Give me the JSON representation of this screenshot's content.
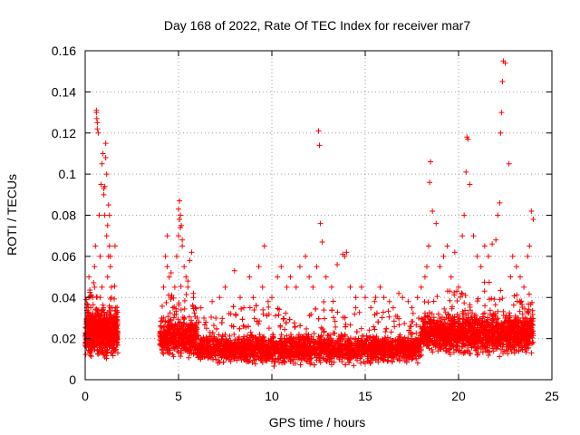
{
  "chart_data": {
    "type": "scatter",
    "title": "Day 168 of 2022, Rate Of TEC Index for receiver mar7",
    "xlabel": "GPS time / hours",
    "ylabel": "ROTI / TECUs",
    "xlim": [
      0,
      25
    ],
    "ylim": [
      0,
      0.16
    ],
    "xticks": [
      0,
      5,
      10,
      15,
      20,
      25
    ],
    "xtick_labels": [
      "0",
      "5",
      "10",
      "15",
      "20",
      "25"
    ],
    "yticks": [
      0,
      0.02,
      0.04,
      0.06,
      0.08,
      0.1,
      0.12,
      0.14,
      0.16
    ],
    "ytick_labels": [
      "0",
      "0.02",
      "0.04",
      "0.06",
      "0.08",
      "0.1",
      "0.12",
      "0.14",
      "0.16"
    ],
    "grid": true,
    "marker": "+",
    "color": "#ff0000",
    "series": [
      {
        "x": [
          0.1,
          0.2,
          0.3,
          0.4,
          0.5,
          0.55,
          0.6,
          0.65,
          0.7,
          0.75,
          0.8,
          0.85,
          0.9,
          0.95,
          1.0,
          1.05,
          1.1,
          1.15,
          1.2,
          1.25,
          1.3,
          1.35,
          1.4,
          1.45,
          1.5,
          1.55,
          1.6,
          1.65,
          1.7,
          0.6,
          0.62,
          0.65,
          1.0,
          1.05,
          1.1,
          1.2,
          1.3,
          1.4,
          0.3,
          0.5,
          0.8,
          1.15,
          1.25,
          1.5,
          1.6,
          0.2,
          0.4,
          0.7,
          0.9,
          1.35,
          1.45,
          1.55,
          4.0,
          4.1,
          4.2,
          4.3,
          4.4,
          4.5,
          4.6,
          4.7,
          4.8,
          4.9,
          5.0,
          5.05,
          5.1,
          5.15,
          5.2,
          5.3,
          5.4,
          5.5,
          5.6,
          5.7,
          5.8,
          5.9,
          6.0,
          5.0,
          5.1,
          5.2,
          5.05,
          4.4,
          4.6,
          5.5,
          5.8,
          6.2,
          6.5,
          6.8,
          7.0,
          7.2,
          7.5,
          7.8,
          8.0,
          8.3,
          8.5,
          8.8,
          9.0,
          9.3,
          9.5,
          9.8,
          9.6,
          10.0,
          10.3,
          10.5,
          10.8,
          11.0,
          11.3,
          11.5,
          11.8,
          12.0,
          12.2,
          12.4,
          12.5,
          12.55,
          12.6,
          12.7,
          12.9,
          13.2,
          13.5,
          13.8,
          13.9,
          14.0,
          14.2,
          14.5,
          14.8,
          15.0,
          15.3,
          15.5,
          15.8,
          16.0,
          16.3,
          16.5,
          16.8,
          17.0,
          17.3,
          17.5,
          17.8,
          18.0,
          18.2,
          18.3,
          18.4,
          18.45,
          18.5,
          18.6,
          18.8,
          19.0,
          19.2,
          19.4,
          19.6,
          19.8,
          20.0,
          20.2,
          20.3,
          20.4,
          20.45,
          20.5,
          20.6,
          20.8,
          21.0,
          21.2,
          21.4,
          21.6,
          21.8,
          22.0,
          22.1,
          22.2,
          22.25,
          22.3,
          22.35,
          22.4,
          22.5,
          22.7,
          22.9,
          23.1,
          23.3,
          23.5,
          23.7,
          23.8,
          23.9,
          24.0,
          6.0,
          7.0,
          8.0,
          9.0,
          10.0,
          11.0,
          12.0,
          13.0,
          14.0,
          15.0,
          16.0,
          17.0,
          18.0,
          19.0,
          20.0,
          21.0,
          22.0,
          23.0,
          6.5,
          7.5,
          8.5,
          9.5,
          10.5,
          11.5,
          12.5,
          13.5,
          14.5,
          15.5,
          16.5,
          17.5,
          18.5,
          19.5,
          20.5,
          21.5,
          22.5,
          23.5
        ],
        "y": [
          0.02,
          0.025,
          0.018,
          0.03,
          0.045,
          0.065,
          0.131,
          0.125,
          0.12,
          0.08,
          0.06,
          0.095,
          0.105,
          0.11,
          0.09,
          0.08,
          0.115,
          0.07,
          0.05,
          0.06,
          0.08,
          0.055,
          0.04,
          0.025,
          0.02,
          0.015,
          0.03,
          0.022,
          0.018,
          0.13,
          0.127,
          0.122,
          0.093,
          0.094,
          0.108,
          0.075,
          0.065,
          0.045,
          0.035,
          0.055,
          0.04,
          0.1,
          0.085,
          0.03,
          0.065,
          0.05,
          0.04,
          0.03,
          0.045,
          0.06,
          0.035,
          0.025,
          0.022,
          0.03,
          0.045,
          0.06,
          0.07,
          0.05,
          0.04,
          0.035,
          0.045,
          0.06,
          0.083,
          0.087,
          0.08,
          0.075,
          0.065,
          0.055,
          0.05,
          0.045,
          0.058,
          0.062,
          0.04,
          0.035,
          0.03,
          0.07,
          0.074,
          0.068,
          0.078,
          0.055,
          0.052,
          0.048,
          0.042,
          0.035,
          0.025,
          0.038,
          0.03,
          0.04,
          0.045,
          0.032,
          0.053,
          0.04,
          0.035,
          0.05,
          0.04,
          0.055,
          0.045,
          0.038,
          0.065,
          0.04,
          0.05,
          0.055,
          0.045,
          0.05,
          0.045,
          0.055,
          0.06,
          0.05,
          0.045,
          0.055,
          0.121,
          0.114,
          0.076,
          0.067,
          0.05,
          0.045,
          0.056,
          0.061,
          0.06,
          0.062,
          0.045,
          0.04,
          0.045,
          0.04,
          0.035,
          0.038,
          0.045,
          0.04,
          0.038,
          0.035,
          0.042,
          0.04,
          0.038,
          0.035,
          0.04,
          0.045,
          0.05,
          0.055,
          0.065,
          0.096,
          0.106,
          0.082,
          0.076,
          0.055,
          0.06,
          0.065,
          0.05,
          0.062,
          0.045,
          0.07,
          0.08,
          0.101,
          0.118,
          0.117,
          0.095,
          0.07,
          0.06,
          0.055,
          0.065,
          0.06,
          0.066,
          0.068,
          0.08,
          0.086,
          0.12,
          0.13,
          0.145,
          0.155,
          0.154,
          0.105,
          0.06,
          0.055,
          0.05,
          0.045,
          0.06,
          0.065,
          0.082,
          0.078,
          0.012,
          0.01,
          0.012,
          0.012,
          0.01,
          0.012,
          0.011,
          0.01,
          0.012,
          0.008,
          0.01,
          0.011,
          0.012,
          0.015,
          0.014,
          0.012,
          0.015,
          0.013,
          0.02,
          0.022,
          0.021,
          0.02,
          0.019,
          0.02,
          0.021,
          0.019,
          0.02,
          0.018,
          0.019,
          0.02,
          0.023,
          0.025,
          0.026,
          0.028,
          0.03,
          0.027
        ]
      }
    ]
  }
}
